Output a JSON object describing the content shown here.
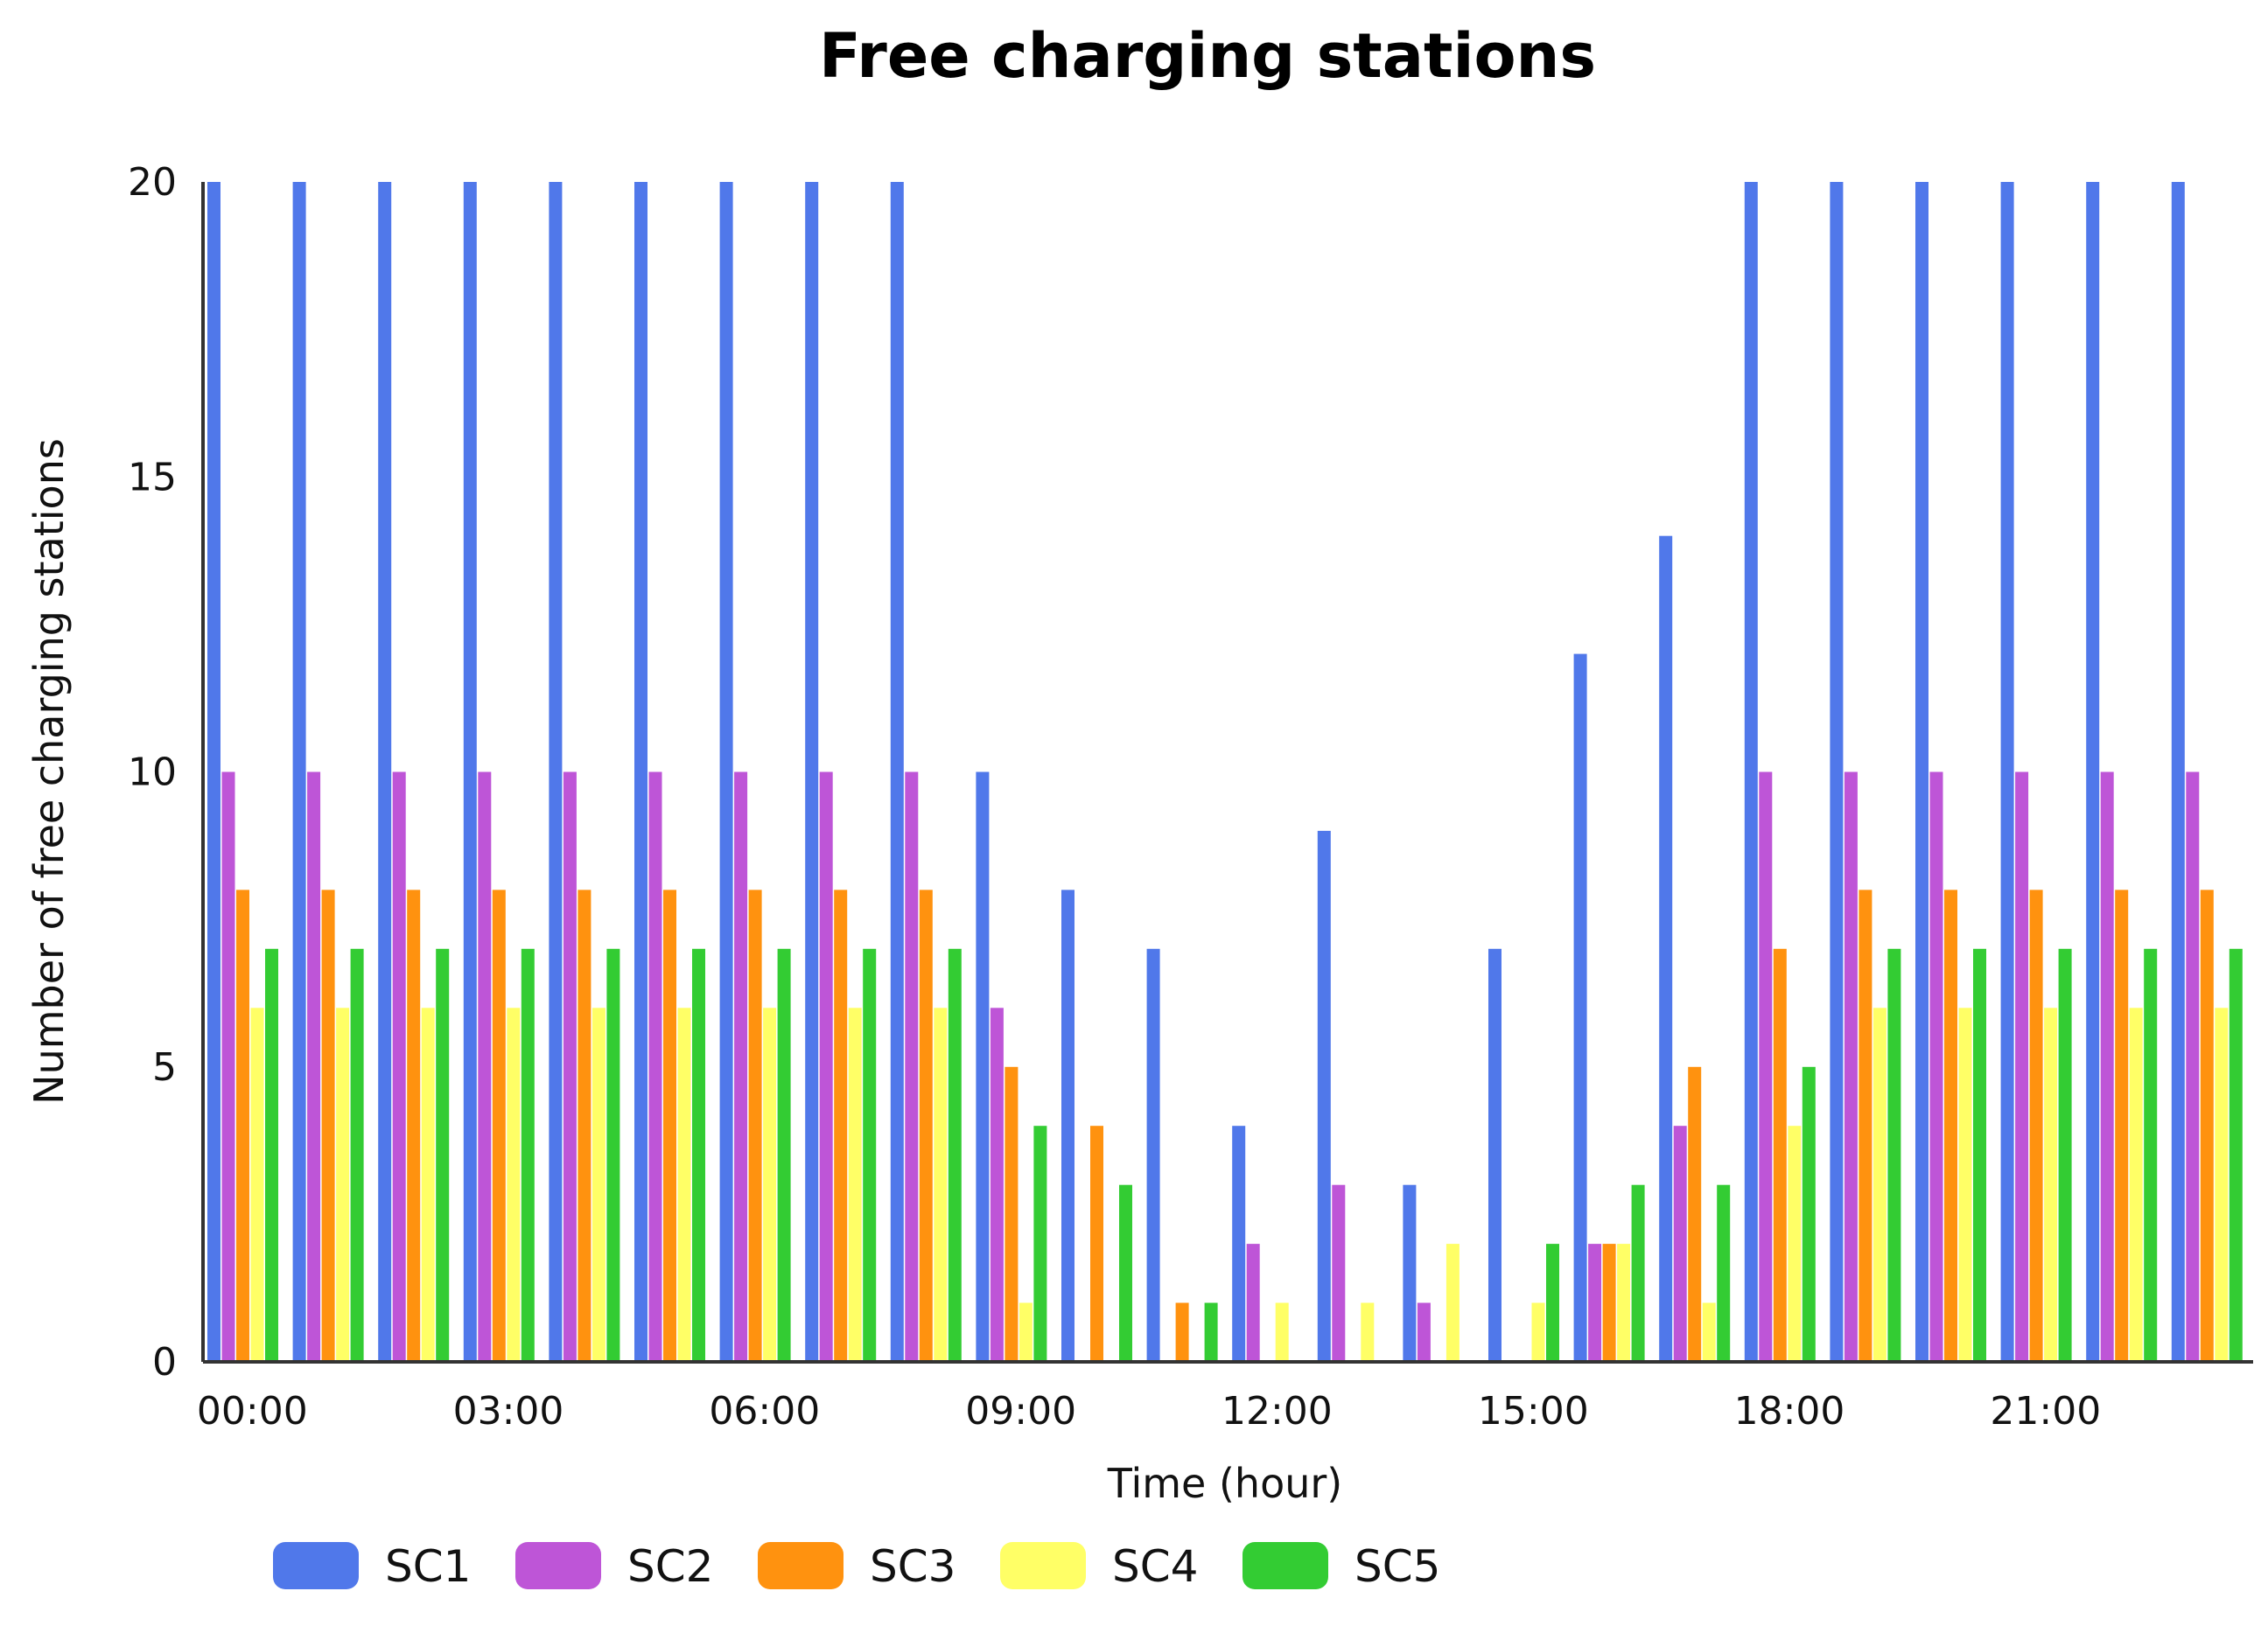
{
  "chart_data": {
    "type": "bar",
    "title": "Free charging stations",
    "xlabel": "Time (hour)",
    "ylabel": "Number of free charging stations",
    "ylim": [
      0,
      20
    ],
    "y_ticks": [
      "0",
      "5",
      "10",
      "15",
      "20"
    ],
    "grid": false,
    "legend_position": "bottom-left",
    "categories": [
      "00:00",
      "01:00",
      "02:00",
      "03:00",
      "04:00",
      "05:00",
      "06:00",
      "07:00",
      "08:00",
      "09:00",
      "10:00",
      "11:00",
      "12:00",
      "13:00",
      "14:00",
      "15:00",
      "16:00",
      "17:00",
      "18:00",
      "19:00",
      "20:00",
      "21:00",
      "22:00",
      "23:00"
    ],
    "x_tick_labels": [
      "00:00",
      "03:00",
      "06:00",
      "09:00",
      "12:00",
      "15:00",
      "18:00",
      "21:00"
    ],
    "series": [
      {
        "name": "SC1",
        "color": "#5078EA",
        "values": [
          20,
          20,
          20,
          20,
          20,
          20,
          20,
          20,
          20,
          10,
          8,
          7,
          4,
          9,
          3,
          7,
          12,
          14,
          20,
          20,
          20,
          20,
          20,
          20
        ]
      },
      {
        "name": "SC2",
        "color": "#BE55D7",
        "values": [
          10,
          10,
          10,
          10,
          10,
          10,
          10,
          10,
          10,
          6,
          0,
          0,
          2,
          3,
          1,
          0,
          2,
          4,
          10,
          10,
          10,
          10,
          10,
          10
        ]
      },
      {
        "name": "SC3",
        "color": "#FF920F",
        "values": [
          8,
          8,
          8,
          8,
          8,
          8,
          8,
          8,
          8,
          5,
          4,
          1,
          0,
          0,
          0,
          0,
          2,
          5,
          7,
          8,
          8,
          8,
          8,
          8
        ]
      },
      {
        "name": "SC4",
        "color": "#FFFF66",
        "values": [
          6,
          6,
          6,
          6,
          6,
          6,
          6,
          6,
          6,
          1,
          0,
          0,
          1,
          1,
          2,
          1,
          2,
          1,
          4,
          6,
          6,
          6,
          6,
          6
        ]
      },
      {
        "name": "SC5",
        "color": "#33CC33",
        "values": [
          7,
          7,
          7,
          7,
          7,
          7,
          7,
          7,
          7,
          4,
          3,
          1,
          0,
          0,
          0,
          2,
          3,
          3,
          5,
          7,
          7,
          7,
          7,
          7
        ]
      }
    ]
  }
}
